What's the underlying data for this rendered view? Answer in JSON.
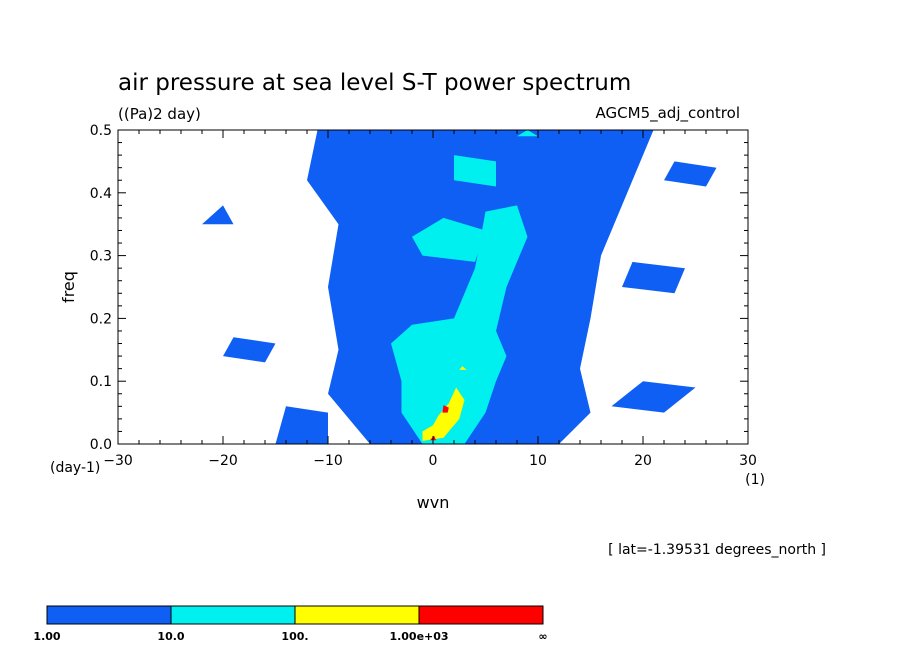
{
  "chart_data": {
    "type": "heatmap",
    "title": "air pressure at sea level S-T power spectrum",
    "units_label": "((Pa)2 day)",
    "model_label": "AGCM5_adj_control",
    "xlabel": "wvn",
    "x_unit_label": "(1)",
    "ylabel": "freq",
    "y_unit_label": "(day-1)",
    "xlim": [
      -30,
      30
    ],
    "ylim": [
      0.0,
      0.5
    ],
    "x_ticks": [
      "-30",
      "-20",
      "-10",
      "0",
      "10",
      "20",
      "30"
    ],
    "y_ticks": [
      "0.0",
      "0.1",
      "0.2",
      "0.3",
      "0.4",
      "0.5"
    ],
    "annotation": "[ lat=-1.39531 degrees_north ]",
    "colorbar": {
      "levels": [
        "1.00",
        "10.0",
        "100.",
        "1.00e+03",
        "∞"
      ],
      "colors": [
        "#0f5ff5",
        "#00f0f0",
        "#ffff00",
        "#ff0000"
      ]
    },
    "contours": [
      {
        "level": "1-10",
        "color": "#0f5ff5",
        "polygon": [
          [
            -2,
            0.0
          ],
          [
            12,
            0.0
          ],
          [
            15,
            0.05
          ],
          [
            14,
            0.12
          ],
          [
            15,
            0.2
          ],
          [
            16,
            0.3
          ],
          [
            19,
            0.42
          ],
          [
            21,
            0.5
          ],
          [
            -11,
            0.5
          ],
          [
            -12,
            0.42
          ],
          [
            -9,
            0.35
          ],
          [
            -10,
            0.25
          ],
          [
            -9,
            0.15
          ],
          [
            -10,
            0.08
          ],
          [
            -6,
            0.0
          ]
        ]
      },
      {
        "level": "1-10",
        "color": "#0f5ff5",
        "polygon": [
          [
            -15,
            0.0
          ],
          [
            -10,
            0.0
          ],
          [
            -10,
            0.05
          ],
          [
            -14,
            0.06
          ]
        ]
      },
      {
        "level": "1-10",
        "color": "#0f5ff5",
        "polygon": [
          [
            -20,
            0.14
          ],
          [
            -16,
            0.13
          ],
          [
            -15,
            0.16
          ],
          [
            -19,
            0.17
          ]
        ]
      },
      {
        "level": "1-10",
        "color": "#0f5ff5",
        "polygon": [
          [
            17,
            0.06
          ],
          [
            22,
            0.05
          ],
          [
            25,
            0.09
          ],
          [
            20,
            0.1
          ]
        ]
      },
      {
        "level": "1-10",
        "color": "#0f5ff5",
        "polygon": [
          [
            18,
            0.25
          ],
          [
            23,
            0.24
          ],
          [
            24,
            0.28
          ],
          [
            19,
            0.29
          ]
        ]
      },
      {
        "level": "1-10",
        "color": "#0f5ff5",
        "polygon": [
          [
            -22,
            0.35
          ],
          [
            -19,
            0.35
          ],
          [
            -20,
            0.38
          ]
        ]
      },
      {
        "level": "1-10",
        "color": "#0f5ff5",
        "polygon": [
          [
            22,
            0.42
          ],
          [
            26,
            0.41
          ],
          [
            27,
            0.44
          ],
          [
            23,
            0.45
          ]
        ]
      },
      {
        "level": "10-100",
        "color": "#00f0f0",
        "polygon": [
          [
            -1,
            0.0
          ],
          [
            3,
            0.0
          ],
          [
            5,
            0.05
          ],
          [
            6,
            0.1
          ],
          [
            7,
            0.14
          ],
          [
            6,
            0.18
          ],
          [
            7,
            0.25
          ],
          [
            9,
            0.33
          ],
          [
            8,
            0.38
          ],
          [
            5,
            0.37
          ],
          [
            4,
            0.28
          ],
          [
            2,
            0.2
          ],
          [
            -2,
            0.19
          ],
          [
            -4,
            0.16
          ],
          [
            -3,
            0.1
          ],
          [
            -3,
            0.05
          ]
        ]
      },
      {
        "level": "10-100",
        "color": "#00f0f0",
        "polygon": [
          [
            -1,
            0.3
          ],
          [
            4,
            0.29
          ],
          [
            5,
            0.34
          ],
          [
            1,
            0.36
          ],
          [
            -2,
            0.33
          ]
        ]
      },
      {
        "level": "10-100",
        "color": "#00f0f0",
        "polygon": [
          [
            2,
            0.42
          ],
          [
            6,
            0.41
          ],
          [
            6,
            0.45
          ],
          [
            2,
            0.46
          ]
        ]
      },
      {
        "level": "10-100",
        "color": "#00f0f0",
        "polygon": [
          [
            8,
            0.49
          ],
          [
            10,
            0.49
          ],
          [
            9,
            0.5
          ]
        ]
      },
      {
        "level": "100-1000",
        "color": "#ffff00",
        "polygon": [
          [
            -1,
            0.005
          ],
          [
            1,
            0.01
          ],
          [
            2.5,
            0.04
          ],
          [
            3,
            0.07
          ],
          [
            2.2,
            0.09
          ],
          [
            1.5,
            0.065
          ],
          [
            0.5,
            0.045
          ],
          [
            0,
            0.03
          ],
          [
            -1,
            0.02
          ]
        ]
      },
      {
        "level": "100-1000",
        "color": "#ffff00",
        "polygon": [
          [
            2.5,
            0.118
          ],
          [
            3.2,
            0.118
          ],
          [
            2.8,
            0.124
          ]
        ]
      },
      {
        "level": "1000-inf",
        "color": "#ff0000",
        "polygon": [
          [
            0.9,
            0.05
          ],
          [
            1.4,
            0.05
          ],
          [
            1.5,
            0.058
          ],
          [
            1.0,
            0.062
          ]
        ]
      },
      {
        "level": "1000-inf",
        "color": "#ff0000",
        "polygon": [
          [
            -0.3,
            0.006
          ],
          [
            0.3,
            0.006
          ],
          [
            0.1,
            0.013
          ]
        ]
      }
    ]
  }
}
